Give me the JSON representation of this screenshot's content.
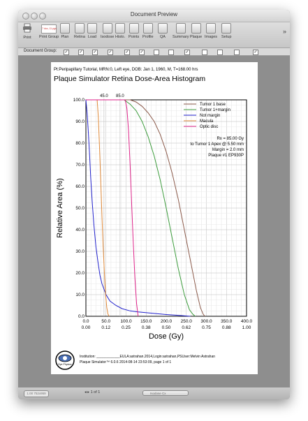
{
  "window": {
    "title": "Document Preview"
  },
  "toolbar": {
    "items": [
      {
        "label": "Print",
        "icon": "printer-icon"
      },
      {
        "label": "Print Group",
        "icon": "print-group-icon",
        "badge": "7 doc, 11 pgs"
      },
      {
        "label": "Plan",
        "icon": "plan-icon"
      },
      {
        "label": "Retina",
        "icon": "retina-icon"
      },
      {
        "label": "Load",
        "icon": "load-icon"
      },
      {
        "label": "Isodose",
        "icon": "isodose-icon"
      },
      {
        "label": "Histo.",
        "icon": "histogram-icon"
      },
      {
        "label": "Points",
        "icon": "points-icon"
      },
      {
        "label": "Profile",
        "icon": "profile-icon"
      },
      {
        "label": "QA",
        "icon": "qa-icon"
      },
      {
        "label": "Summary",
        "icon": "summary-icon"
      },
      {
        "label": "Plaque",
        "icon": "plaque-icon"
      },
      {
        "label": "Images",
        "icon": "images-icon"
      },
      {
        "label": "Setup",
        "icon": "setup-icon"
      }
    ],
    "overflow": "»"
  },
  "group_bar": {
    "label": "Document Group:",
    "checks": [
      true,
      true,
      true,
      true,
      true,
      true,
      false,
      false,
      true,
      false,
      false,
      false,
      true
    ]
  },
  "document": {
    "patient_line": "Pt:Peripapillary Tutorial, MRN:0, Left eye, DOB: Jan 1, 1960, M, T=168.00 hrs",
    "title": "Plaque Simulator Retina Dose-Area Histogram",
    "info": [
      "Rx = 85.00 Gy",
      "to Tumor 1 Apex @ 5.50 mm",
      "Margin = 2.0 mm",
      "Plaque #1 EP930P"
    ],
    "footer_line1": "Institution: ____________EULA:astrahan.2014,Login:astrahan,PSUser:Melvin Astrahan",
    "footer_line2": "Plaque Simulator™ 6.0.6 2014-08-14 23:53:09, page 1 of 1",
    "logo_text": "Eye Physics"
  },
  "chart_data": {
    "type": "line",
    "xlabel": "Dose (Gy)",
    "ylabel": "Relative Area (%)",
    "xlim": [
      0,
      400
    ],
    "ylim": [
      0,
      100
    ],
    "x_ticks": [
      "0.0",
      "50.0",
      "100.0",
      "150.0",
      "200.0",
      "250.0",
      "300.0",
      "350.0",
      "400.0"
    ],
    "x_ticks_fraction": [
      "0.00",
      "0.12",
      "0.25",
      "0.38",
      "0.50",
      "0.62",
      "0.75",
      "0.88",
      "1.00"
    ],
    "y_ticks": [
      "0.0",
      "10.0",
      "20.0",
      "30.0",
      "40.0",
      "50.0",
      "60.0",
      "70.0",
      "80.0",
      "90.0",
      "100.0"
    ],
    "top_markers": [
      {
        "label": "45.0",
        "x": 45
      },
      {
        "label": "85.0",
        "x": 85
      }
    ],
    "grid": true,
    "legend_position": "top-right",
    "series": [
      {
        "name": "Tumor 1 base",
        "color": "#8b5a4a",
        "x": [
          0,
          110,
          125,
          140,
          155,
          170,
          185,
          200,
          215,
          230,
          245,
          260,
          275,
          285,
          292,
          296
        ],
        "y": [
          100,
          100,
          99,
          97,
          94,
          90,
          84,
          76,
          66,
          54,
          40,
          26,
          12,
          4,
          1,
          0
        ]
      },
      {
        "name": "Tumor 1+margin",
        "color": "#3c9c3c",
        "x": [
          0,
          95,
          110,
          125,
          140,
          155,
          170,
          185,
          200,
          215,
          230,
          245,
          258,
          266,
          272
        ],
        "y": [
          100,
          100,
          98,
          95,
          90,
          83,
          74,
          63,
          50,
          36,
          22,
          10,
          3,
          1,
          0
        ]
      },
      {
        "name": "Not margin",
        "color": "#2222cc",
        "x": [
          0,
          3,
          6,
          9,
          12,
          16,
          20,
          25,
          30,
          35,
          40,
          50,
          60,
          75,
          90,
          110,
          130,
          160,
          200,
          240,
          260
        ],
        "y": [
          100,
          94,
          85,
          75,
          64,
          52,
          42,
          32,
          25,
          19,
          15,
          10,
          7,
          5,
          3.5,
          2.5,
          2,
          1.5,
          0.8,
          0.3,
          0
        ]
      },
      {
        "name": "Macula",
        "color": "#e08a3a",
        "x": [
          0,
          28,
          31,
          34,
          37,
          40,
          43,
          46,
          49,
          52,
          55,
          58
        ],
        "y": [
          100,
          100,
          92,
          78,
          62,
          46,
          32,
          20,
          10,
          4,
          1,
          0
        ]
      },
      {
        "name": "Optic disc",
        "color": "#dd2288",
        "x": [
          0,
          98,
          102,
          106,
          110,
          114,
          118,
          122,
          126,
          130
        ],
        "y": [
          100,
          100,
          96,
          86,
          70,
          52,
          34,
          18,
          6,
          0
        ]
      }
    ]
  },
  "status_bar": {
    "zoom": "1.00 752x959",
    "page_nav": "1 of 1",
    "group_select": "Isodose Cx"
  }
}
